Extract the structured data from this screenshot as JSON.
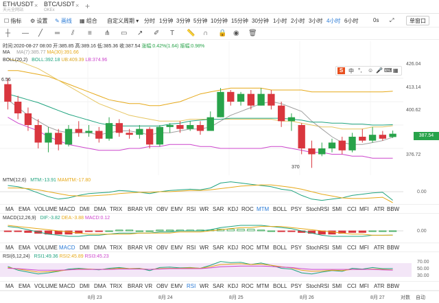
{
  "tabs": [
    {
      "symbol": "ETH/USDT",
      "sub": "天元全网站"
    },
    {
      "symbol": "BTC/USDT",
      "sub": "OKEx"
    }
  ],
  "tab_add": "+",
  "toolbar": {
    "indicator": "指标",
    "settings": "设置",
    "draw": "画线",
    "combine": "组合",
    "custom_period": "自定义周期",
    "periods": [
      "分时",
      "1分钟",
      "3分钟",
      "5分钟",
      "10分钟",
      "15分钟",
      "30分钟",
      "1小时",
      "2小时",
      "3小时",
      "4小时",
      "6小时"
    ],
    "active_period": "4小时",
    "zero_s": "0s",
    "single_screen": "单窗口"
  },
  "info": {
    "time": "时间:2020-08-27 08:00",
    "open": "开:385.85",
    "high": "高:389.16",
    "low": "低:385.36",
    "close": "收:387.54",
    "change": "涨幅:0.42%(1.64)",
    "amplitude": "振幅:0.98%",
    "ma_label": "MA",
    "ma7": "MA(7):385.77",
    "ma30": "MA(30):391.66",
    "boll_label": "BOLL(20,2)",
    "boll": "BOLL:392.18",
    "ub": "UB:409.39",
    "lb": "LB:374.96",
    "left_value": "6.56"
  },
  "price_ticks": [
    "426.04",
    "413.14",
    "400.62",
    "387.54",
    "376.72"
  ],
  "last_price": "387.54",
  "low_mark": "370",
  "indicator_tabs": [
    "MA",
    "EMA",
    "VOLUME",
    "MACD",
    "DMI",
    "DMA",
    "TRIX",
    "BRAR",
    "VR",
    "OBV",
    "EMV",
    "RSI",
    "WR",
    "SAR",
    "KDJ",
    "ROC",
    "MTM",
    "BOLL",
    "PSY",
    "StochRSI",
    "SMI",
    "CCI",
    "MFI",
    "ATR",
    "BBW"
  ],
  "mtm": {
    "label": "MTM(12,6)",
    "mtm": "MTM:-13.91",
    "mamtm": "MAMTM:-17.80",
    "tick": "0.00"
  },
  "macd": {
    "label": "MACD(12,26,9)",
    "dif": "DIF:-3.82",
    "dea": "DEA:-3.88",
    "macd": "MACD:0.12",
    "tick": "0.00"
  },
  "rsi": {
    "label": "RSI(6,12,24)",
    "rsi1": "RSI1:49.36",
    "rsi2": "RSI2:45.89",
    "rsi3": "RSI3:45.23",
    "ticks": [
      "70.00",
      "50.00",
      "30.00"
    ]
  },
  "indicator_active": {
    "row1": "MTM",
    "row2": "MACD",
    "row3": "RSI"
  },
  "dates": [
    "8月 23",
    "8月 24",
    "8月 25",
    "8月 26",
    "8月 27"
  ],
  "corner": {
    "log": "对数",
    "auto": "自动"
  },
  "chart_data": {
    "type": "candlestick",
    "candles": [
      {
        "o": 413,
        "c": 404,
        "h": 416,
        "l": 400
      },
      {
        "o": 404,
        "c": 398,
        "h": 407,
        "l": 395
      },
      {
        "o": 398,
        "c": 392,
        "h": 401,
        "l": 389
      },
      {
        "o": 392,
        "c": 383,
        "h": 395,
        "l": 380
      },
      {
        "o": 383,
        "c": 388,
        "h": 391,
        "l": 378
      },
      {
        "o": 388,
        "c": 382,
        "h": 390,
        "l": 379
      },
      {
        "o": 382,
        "c": 390,
        "h": 392,
        "l": 381
      },
      {
        "o": 390,
        "c": 388,
        "h": 394,
        "l": 386
      },
      {
        "o": 388,
        "c": 389,
        "h": 392,
        "l": 386
      },
      {
        "o": 389,
        "c": 385,
        "h": 391,
        "l": 383
      },
      {
        "o": 385,
        "c": 393,
        "h": 396,
        "l": 384
      },
      {
        "o": 393,
        "c": 388,
        "h": 395,
        "l": 386
      },
      {
        "o": 388,
        "c": 387,
        "h": 390,
        "l": 385
      },
      {
        "o": 387,
        "c": 390,
        "h": 392,
        "l": 385
      },
      {
        "o": 390,
        "c": 382,
        "h": 391,
        "l": 380
      },
      {
        "o": 382,
        "c": 391,
        "h": 392,
        "l": 381
      },
      {
        "o": 391,
        "c": 392,
        "h": 393,
        "l": 388
      },
      {
        "o": 392,
        "c": 390,
        "h": 394,
        "l": 388
      },
      {
        "o": 390,
        "c": 392,
        "h": 394,
        "l": 389
      },
      {
        "o": 392,
        "c": 389,
        "h": 394,
        "l": 387
      },
      {
        "o": 389,
        "c": 396,
        "h": 399,
        "l": 389
      },
      {
        "o": 396,
        "c": 409,
        "h": 411,
        "l": 396
      },
      {
        "o": 409,
        "c": 404,
        "h": 410,
        "l": 402
      },
      {
        "o": 404,
        "c": 408,
        "h": 409,
        "l": 402
      },
      {
        "o": 408,
        "c": 402,
        "h": 410,
        "l": 400
      },
      {
        "o": 402,
        "c": 408,
        "h": 411,
        "l": 402
      },
      {
        "o": 408,
        "c": 402,
        "h": 410,
        "l": 400
      },
      {
        "o": 402,
        "c": 394,
        "h": 404,
        "l": 391
      },
      {
        "o": 394,
        "c": 396,
        "h": 398,
        "l": 389
      },
      {
        "o": 392,
        "c": 380,
        "h": 393,
        "l": 377
      },
      {
        "o": 380,
        "c": 377,
        "h": 384,
        "l": 370
      },
      {
        "o": 377,
        "c": 380,
        "h": 383,
        "l": 376
      },
      {
        "o": 380,
        "c": 383,
        "h": 385,
        "l": 378
      },
      {
        "o": 384,
        "c": 379,
        "h": 386,
        "l": 377
      },
      {
        "o": 379,
        "c": 386,
        "h": 388,
        "l": 378
      },
      {
        "o": 386,
        "c": 384,
        "h": 390,
        "l": 383
      },
      {
        "o": 384,
        "c": 387,
        "h": 391,
        "l": 383
      },
      {
        "o": 387,
        "c": 385,
        "h": 389,
        "l": 384
      },
      {
        "o": 385.85,
        "c": 387.54,
        "h": 389.16,
        "l": 385.36
      }
    ],
    "ma7": [
      405,
      401,
      397,
      394,
      391,
      389,
      388,
      388,
      388,
      387,
      388,
      389,
      389,
      388,
      387,
      388,
      388,
      389,
      390,
      390,
      391,
      394,
      397,
      399,
      401,
      403,
      404,
      403,
      401,
      399,
      394,
      390,
      386,
      383,
      382,
      382,
      383,
      384,
      385.77
    ],
    "ma30": [
      426,
      425,
      423,
      421,
      418,
      415,
      412,
      409,
      406,
      403,
      401,
      399,
      397,
      396,
      395,
      394,
      394,
      394,
      395,
      395,
      395,
      395,
      395,
      395,
      395,
      395,
      395,
      394,
      394,
      393,
      392,
      391,
      391,
      390,
      390,
      390,
      391,
      391,
      391.66
    ],
    "ub": [
      420,
      420,
      419,
      418,
      417,
      415,
      413,
      411,
      409,
      407,
      405,
      404,
      403,
      403,
      402,
      402,
      403,
      404,
      406,
      408,
      409,
      410,
      411,
      411,
      411,
      411,
      410,
      410,
      410,
      410,
      409,
      409,
      409,
      409,
      409,
      409,
      409,
      409,
      409.39
    ],
    "lb": [
      396,
      393,
      391,
      389,
      386,
      384,
      382,
      381,
      380,
      379,
      379,
      379,
      380,
      380,
      381,
      381,
      382,
      382,
      382,
      381,
      381,
      380,
      380,
      380,
      380,
      380,
      381,
      381,
      380,
      379,
      378,
      378,
      377,
      377,
      376,
      376,
      375,
      375,
      374.96
    ],
    "ylim": [
      368,
      428
    ]
  }
}
